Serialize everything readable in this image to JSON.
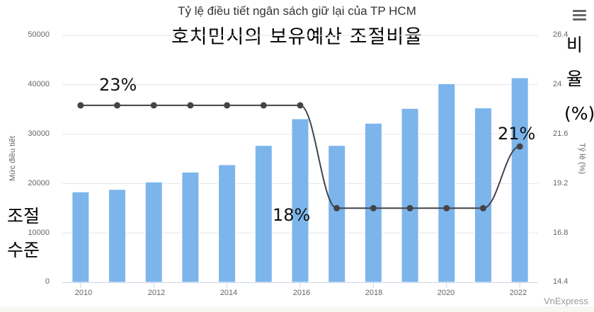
{
  "chart": {
    "title": "Tỷ lệ điều tiết ngân sách giữ lại của TP HCM",
    "overlay_title": "호치민시의 보유예산 조절비율",
    "menu_icon": "hamburger-menu-icon",
    "left_axis_label": "Mức điều tiết",
    "right_axis_label": "Tỷ lệ (%)",
    "left_overlay_label_line1": "조절",
    "left_overlay_label_line2": "수준",
    "right_overlay_label_line1": "비",
    "right_overlay_label_line2": "율",
    "right_overlay_label_line3": "(%)",
    "left_ticks": [
      "50000",
      "40000",
      "30000",
      "20000",
      "10000",
      "0"
    ],
    "right_ticks": [
      "26.4",
      "24",
      "21.6",
      "19.2",
      "16.8",
      "14.4"
    ],
    "x_ticks": [
      "2010",
      "2012",
      "2014",
      "2016",
      "2018",
      "2020",
      "2022"
    ],
    "annotations": {
      "a23": "23%",
      "a18": "18%",
      "a21": "21%"
    },
    "credit": "VnExpress",
    "colors": {
      "bar": "#7cb5ec",
      "line": "#434348",
      "grid": "#e6e6e6",
      "axis": "#ccd6eb"
    }
  },
  "chart_data": {
    "type": "bar",
    "title": "Tỷ lệ điều tiết ngân sách giữ lại của TP HCM",
    "subtitle": "호치민시의 보유예산 조절비율",
    "categories": [
      "2010",
      "2011",
      "2012",
      "2013",
      "2014",
      "2015",
      "2016",
      "2017",
      "2018",
      "2019",
      "2020",
      "2021",
      "2022"
    ],
    "series": [
      {
        "name": "Mức điều tiết",
        "type": "bar",
        "axis": "left",
        "values": [
          18300,
          18800,
          20300,
          22300,
          23800,
          27700,
          33100,
          27700,
          32200,
          35200,
          40200,
          35300,
          41400
        ]
      },
      {
        "name": "Tỷ lệ (%)",
        "type": "line",
        "axis": "right",
        "values": [
          23,
          23,
          23,
          23,
          23,
          23,
          23,
          18,
          18,
          18,
          18,
          18,
          21
        ]
      }
    ],
    "xlabel": "",
    "ylabel": "Mức điều tiết",
    "ylabel_right": "Tỷ lệ (%)",
    "ylim": [
      0,
      50000
    ],
    "ylim_right": [
      14.4,
      26.4
    ],
    "annotations": [
      "23%",
      "18%",
      "21%"
    ],
    "grid": true,
    "legend": "none"
  }
}
